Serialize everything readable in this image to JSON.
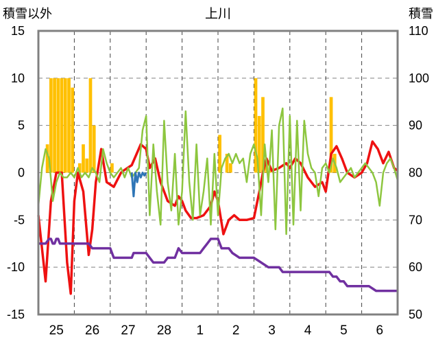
{
  "chart_data": {
    "type": "line",
    "title": "上川",
    "ylabel_left": "積雪以外",
    "ylabel_right": "積雪",
    "ylim_left": [
      -15,
      15
    ],
    "ylim_right": [
      50,
      110
    ],
    "yticks_left": [
      "15",
      "10",
      "5",
      "0",
      "-5",
      "-10",
      "-15"
    ],
    "yticks_right": [
      "110",
      "100",
      "90",
      "80",
      "70",
      "60",
      "50"
    ],
    "xlim": [
      0,
      10
    ],
    "xtick_labels": [
      "25",
      "26",
      "27",
      "28",
      "1",
      "2",
      "3",
      "4",
      "5",
      "6"
    ],
    "colors": {
      "temperature": "#ee1111",
      "wind": "#8dc63f",
      "precipitation": "#ffc000",
      "sunshine": "#2e75b6",
      "snow_depth": "#7030a0",
      "grid": "#808080",
      "frame": "#808080"
    },
    "series": [
      {
        "name": "temperature",
        "axis": "left",
        "x": [
          0,
          0.2,
          0.35,
          0.5,
          0.65,
          0.8,
          0.9,
          1.0,
          1.1,
          1.25,
          1.4,
          1.5,
          1.6,
          1.75,
          1.9,
          2.1,
          2.3,
          2.4,
          2.6,
          2.85,
          3.0,
          3.1,
          3.25,
          3.4,
          3.6,
          3.8,
          3.9,
          4.0,
          4.1,
          4.25,
          4.4,
          4.6,
          4.8,
          4.9,
          5.0,
          5.15,
          5.3,
          5.45,
          5.6,
          5.8,
          6.0,
          6.15,
          6.25,
          6.35,
          6.5,
          6.7,
          6.9,
          7.0,
          7.15,
          7.3,
          7.5,
          7.7,
          7.9,
          8.0,
          8.15,
          8.3,
          8.45,
          8.6,
          8.8,
          9.0,
          9.15,
          9.3,
          9.45,
          9.6,
          9.75,
          9.9,
          10.0
        ],
        "values": [
          -4.5,
          -11.5,
          -3,
          0,
          0,
          -9.5,
          -12.8,
          -3,
          0,
          -2,
          -8.7,
          -6,
          -1,
          2.5,
          -1,
          -1.5,
          0,
          0.3,
          0.8,
          3.0,
          2.5,
          0.5,
          1.5,
          -1,
          -3,
          -3.5,
          -2.5,
          -3,
          -4,
          -4.8,
          -4.8,
          -4.5,
          -3.5,
          -2,
          -3,
          -6.5,
          -5,
          -4.5,
          -5,
          -5,
          -4.8,
          -2,
          0,
          1.5,
          0.2,
          0.5,
          1.0,
          0.5,
          1.5,
          1.0,
          -0.5,
          -1.5,
          -1.0,
          -2.0,
          2.0,
          2.8,
          1.5,
          0.0,
          -0.5,
          0.0,
          1.0,
          3.3,
          2.5,
          1.0,
          2.2,
          0.5,
          0.2
        ]
      },
      {
        "name": "wind",
        "axis": "left",
        "x": [
          0,
          0.1,
          0.2,
          0.3,
          0.4,
          0.5,
          0.6,
          0.7,
          0.8,
          0.9,
          1.0,
          1.1,
          1.2,
          1.3,
          1.4,
          1.5,
          1.6,
          1.7,
          1.8,
          1.9,
          2.0,
          2.1,
          2.2,
          2.3,
          2.4,
          2.5,
          2.6,
          2.7,
          2.8,
          2.9,
          3.0,
          3.1,
          3.2,
          3.3,
          3.4,
          3.5,
          3.6,
          3.7,
          3.8,
          3.9,
          4.0,
          4.1,
          4.2,
          4.3,
          4.4,
          4.5,
          4.6,
          4.7,
          4.8,
          4.9,
          5.0,
          5.1,
          5.2,
          5.3,
          5.4,
          5.5,
          5.6,
          5.7,
          5.8,
          5.9,
          6.0,
          6.1,
          6.2,
          6.3,
          6.4,
          6.5,
          6.6,
          6.7,
          6.8,
          6.9,
          7.0,
          7.1,
          7.2,
          7.3,
          7.4,
          7.5,
          7.6,
          7.7,
          7.8,
          7.9,
          8.0,
          8.1,
          8.2,
          8.3,
          8.4,
          8.5,
          8.6,
          8.7,
          8.8,
          8.9,
          9.0,
          9.1,
          9.2,
          9.3,
          9.4,
          9.5,
          9.6,
          9.7,
          9.8,
          9.9,
          10.0
        ],
        "values": [
          -3.5,
          0.5,
          2.5,
          1.5,
          -3,
          -1,
          0,
          -0.5,
          -0.5,
          0,
          -0.5,
          0.5,
          -0.5,
          0,
          -0.5,
          0.5,
          0,
          -1,
          2.5,
          1,
          0,
          -0.5,
          0,
          0.5,
          -0.5,
          0.5,
          -0.5,
          0,
          0.5,
          4.5,
          6,
          -4.5,
          3,
          -2,
          -5.5,
          5.5,
          -1,
          -4,
          2,
          -5.5,
          -2,
          6.5,
          -1,
          -5,
          3,
          -4.5,
          -2,
          1.5,
          -5.5,
          2,
          -4.5,
          0.5,
          1.5,
          2,
          1.0,
          2.0,
          1.0,
          1.5,
          -1,
          2,
          3,
          1.5,
          -4.5,
          3,
          -1,
          4.5,
          -6,
          5,
          6.8,
          -6.5,
          6,
          -5.5,
          5.5,
          -4,
          5.5,
          2,
          0.5,
          0,
          -2.5,
          0.5,
          1,
          0,
          1.5,
          0.5,
          -1,
          -0.5,
          0,
          0.5,
          -0.5,
          0,
          0.5,
          1,
          0.5,
          0,
          -1,
          -3.5,
          0,
          1,
          1.5,
          0.5,
          -0.8
        ]
      },
      {
        "name": "sunshine",
        "axis": "left",
        "x": [
          2.6,
          2.65,
          2.7,
          2.75,
          2.8,
          2.85,
          2.9,
          2.95,
          3.0
        ],
        "values": [
          0,
          -2.5,
          0,
          -1,
          0,
          -0.5,
          0,
          -0.3,
          0
        ]
      },
      {
        "name": "snow_depth",
        "axis": "right",
        "x": [
          -0.2,
          0.2,
          0.3,
          0.35,
          0.4,
          0.45,
          0.5,
          0.55,
          0.6,
          0.7,
          0.8,
          1.0,
          1.4,
          1.5,
          1.55,
          1.6,
          1.7,
          1.8,
          2.0,
          2.1,
          2.2,
          2.3,
          2.6,
          2.65,
          2.7,
          2.8,
          3.0,
          3.1,
          3.2,
          3.5,
          3.6,
          3.8,
          3.9,
          4.0,
          4.1,
          4.2,
          4.3,
          4.5,
          4.6,
          4.7,
          4.8,
          4.9,
          5.0,
          5.1,
          5.2,
          5.3,
          5.4,
          5.6,
          5.8,
          5.9,
          6.0,
          6.4,
          6.6,
          6.7,
          6.8,
          7.0,
          7.2,
          7.4,
          7.6,
          7.8,
          8.0,
          8.1,
          8.2,
          8.3,
          8.4,
          8.5,
          8.6,
          8.8,
          9.0,
          9.2,
          9.4,
          9.6,
          9.8,
          10.0
        ],
        "values": [
          65,
          65,
          66,
          66,
          65,
          65,
          66,
          66,
          65,
          65,
          65,
          65,
          65,
          64,
          64,
          64,
          64,
          64,
          64,
          62,
          62,
          62,
          62,
          63,
          63,
          63,
          63,
          62,
          61,
          61,
          62,
          62,
          64,
          63,
          63,
          63,
          63,
          63,
          64,
          65,
          66,
          66,
          66,
          64,
          64,
          64,
          63,
          62,
          62,
          62,
          62,
          60,
          60,
          60,
          59,
          59,
          59,
          59,
          59,
          59,
          59,
          59,
          58,
          58,
          57,
          57,
          56,
          56,
          56,
          56,
          55,
          55,
          55,
          55
        ]
      }
    ],
    "bars": {
      "name": "precipitation",
      "axis": "left",
      "x": [
        0.25,
        0.35,
        0.45,
        0.55,
        0.65,
        0.75,
        0.85,
        0.95,
        1.15,
        1.25,
        1.35,
        1.45,
        1.55,
        2.05,
        5.05,
        5.25,
        5.35,
        6.05,
        6.15,
        6.25,
        6.35,
        6.45,
        8.15,
        8.25
      ],
      "values": [
        3,
        10,
        10,
        10,
        10,
        10,
        10,
        9,
        1,
        3,
        1.5,
        10,
        5,
        1,
        4,
        2,
        1,
        10,
        6,
        8,
        1,
        0.5,
        8,
        2
      ]
    }
  }
}
